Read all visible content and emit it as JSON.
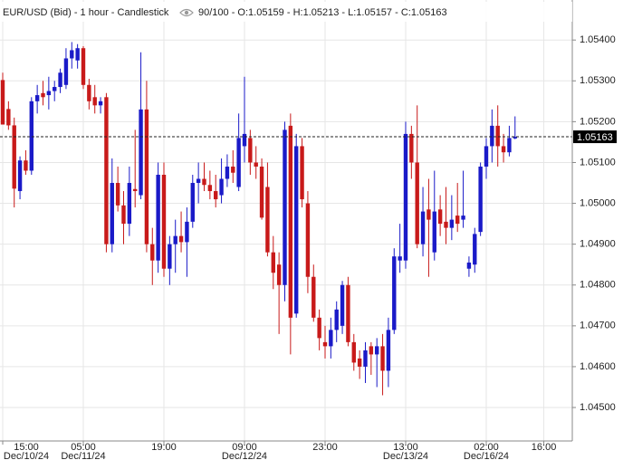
{
  "chart_data": {
    "type": "candlestick",
    "title": "EUR/USD (Bid) - 1 hour - Candlestick",
    "info": "90/100 - O:1.05159 - H:1.05213 - L:1.05157 - C:1.05163",
    "categories": [
      "15:00",
      null,
      null,
      null,
      null,
      null,
      null,
      null,
      null,
      null,
      null,
      null,
      null,
      null,
      "05:00",
      null,
      null,
      null,
      null,
      null,
      null,
      null,
      null,
      null,
      null,
      null,
      null,
      null,
      "19:00",
      null,
      null,
      null,
      null,
      null,
      null,
      null,
      null,
      null,
      null,
      null,
      null,
      null,
      "09:00",
      null,
      null,
      null,
      null,
      null,
      null,
      null,
      null,
      null,
      null,
      null,
      null,
      null,
      "23:00",
      null,
      null,
      null,
      null,
      null,
      null,
      null,
      null,
      null,
      null,
      null,
      null,
      null,
      "13:00",
      null,
      null,
      null,
      null,
      null,
      null,
      null,
      null,
      null,
      null,
      null,
      null,
      null,
      "02:00",
      null,
      null,
      null,
      null,
      null,
      null,
      null,
      null,
      null,
      "16:00"
    ],
    "dates": [
      "Dec/10/24",
      null,
      null,
      null,
      null,
      null,
      null,
      null,
      null,
      null,
      null,
      null,
      null,
      null,
      "Dec/11/24",
      null,
      null,
      null,
      null,
      null,
      null,
      null,
      null,
      null,
      null,
      null,
      null,
      null,
      null,
      null,
      null,
      null,
      null,
      null,
      null,
      null,
      null,
      null,
      null,
      null,
      null,
      null,
      "Dec/12/24",
      null,
      null,
      null,
      null,
      null,
      null,
      null,
      null,
      null,
      null,
      null,
      null,
      null,
      null,
      null,
      null,
      null,
      null,
      null,
      null,
      null,
      null,
      null,
      null,
      null,
      null,
      null,
      "Dec/13/24",
      null,
      null,
      null,
      null,
      null,
      null,
      null,
      null,
      null,
      null,
      null,
      null,
      null,
      "Dec/16/24",
      null,
      null,
      null,
      null,
      null,
      null,
      null,
      null,
      null,
      null
    ],
    "open": [
      1.05302,
      1.05231,
      1.05191,
      1.0503,
      1.05105,
      1.0508,
      1.0525,
      1.0527,
      1.05265,
      1.05275,
      1.05285,
      1.0529,
      1.05355,
      1.0535,
      1.0538,
      1.0529,
      1.0526,
      1.0524,
      1.0526,
      1.049,
      1.0505,
      1.04995,
      1.0495,
      1.05035,
      1.0502,
      1.0523,
      1.049,
      1.0486,
      1.0507,
      1.0484,
      1.049,
      1.0492,
      1.04905,
      1.04955,
      1.0505,
      1.0506,
      1.05045,
      1.0503,
      1.0502,
      1.0506,
      1.0509,
      1.0504,
      1.0514,
      1.0516,
      1.051,
      1.0509,
      1.0504,
      1.0488,
      1.0485,
      1.048,
      1.0519,
      1.0473,
      1.0514,
      1.05,
      1.0482,
      1.0472,
      1.0466,
      1.0465,
      1.0469,
      1.047,
      1.048,
      1.0466,
      1.0462,
      1.046,
      1.0465,
      1.0463,
      1.0465,
      1.0459,
      1.0469,
      1.0486,
      1.0486,
      1.0517,
      1.051,
      1.049,
      1.04985,
      1.0488,
      1.04985,
      1.04955,
      1.0494,
      1.0497,
      1.0496,
      1.0484,
      1.0485,
      1.0493,
      1.0509,
      1.0514,
      1.0519,
      1.0514,
      1.05125,
      1.05159,
      null,
      null,
      null,
      null,
      null
    ],
    "high": [
      1.0532,
      1.0525,
      1.0521,
      1.05115,
      1.0513,
      1.0526,
      1.0529,
      1.053,
      1.0531,
      1.053,
      1.0533,
      1.0538,
      1.05395,
      1.0539,
      1.05385,
      1.05305,
      1.0529,
      1.0526,
      1.0527,
      1.0511,
      1.0509,
      1.0503,
      1.0509,
      1.0518,
      1.0537,
      1.053,
      1.0494,
      1.051,
      1.051,
      1.0492,
      1.0496,
      1.0498,
      1.0499,
      1.0507,
      1.051,
      1.051,
      1.0508,
      1.0507,
      1.0511,
      1.0512,
      1.0513,
      1.0522,
      1.0531,
      1.0518,
      1.0514,
      1.0511,
      1.051,
      1.0492,
      1.0488,
      1.052,
      1.0522,
      1.0517,
      1.0516,
      1.0503,
      1.0485,
      1.0474,
      1.047,
      1.0472,
      1.0476,
      1.0481,
      1.0482,
      1.0468,
      1.0464,
      1.0466,
      1.0466,
      1.0467,
      1.0468,
      1.0472,
      1.0489,
      1.0495,
      1.052,
      1.0519,
      1.0524,
      1.0504,
      1.0506,
      1.0508,
      1.0502,
      1.0504,
      1.0502,
      1.0505,
      1.0508,
      1.0487,
      1.0494,
      1.051,
      1.0516,
      1.0523,
      1.0524,
      1.0517,
      1.0519,
      1.05213,
      null,
      null,
      null,
      null,
      null
    ],
    "low": [
      1.05193,
      1.0518,
      1.0499,
      1.0501,
      1.0507,
      1.0507,
      1.0522,
      1.0524,
      1.0523,
      1.0525,
      1.0527,
      1.0528,
      1.0533,
      1.0533,
      1.0528,
      1.0523,
      1.0522,
      1.0522,
      1.0488,
      1.0488,
      1.0498,
      1.049,
      1.0492,
      1.0499,
      1.0501,
      1.0488,
      1.048,
      1.0483,
      1.0482,
      1.048,
      1.0483,
      1.0488,
      1.0482,
      1.0494,
      1.05,
      1.0503,
      1.0501,
      1.0499,
      1.05,
      1.0504,
      1.0505,
      1.0503,
      1.051,
      1.0507,
      1.0506,
      1.0496,
      1.0487,
      1.0479,
      1.0468,
      1.0476,
      1.0463,
      1.0472,
      1.0499,
      1.0478,
      1.0471,
      1.0464,
      1.0462,
      1.0462,
      1.0466,
      1.0468,
      1.0465,
      1.0459,
      1.0457,
      1.0456,
      1.0458,
      1.0455,
      1.0453,
      1.0455,
      1.0468,
      1.0483,
      1.0484,
      1.0506,
      1.0489,
      1.0487,
      1.0482,
      1.0486,
      1.0492,
      1.049,
      1.0491,
      1.0493,
      1.0494,
      1.0482,
      1.0483,
      1.0492,
      1.0506,
      1.051,
      1.0509,
      1.051,
      1.05115,
      1.05157,
      null,
      null,
      null,
      null,
      null
    ],
    "close": [
      1.05193,
      1.05191,
      1.05036,
      1.05105,
      1.0508,
      1.0525,
      1.05265,
      1.0526,
      1.05275,
      1.05285,
      1.0532,
      1.05355,
      1.05375,
      1.0538,
      1.0529,
      1.0525,
      1.0524,
      1.0525,
      1.049,
      1.0505,
      1.04995,
      1.0495,
      1.0505,
      1.0503,
      1.0523,
      1.049,
      1.0486,
      1.0507,
      1.0484,
      1.049,
      1.0492,
      1.04905,
      1.04955,
      1.0505,
      1.0506,
      1.05045,
      1.0503,
      1.0501,
      1.0506,
      1.0509,
      1.05075,
      1.0516,
      1.0517,
      1.051,
      1.0509,
      1.04965,
      1.0488,
      1.0483,
      1.048,
      1.0518,
      1.0472,
      1.0514,
      1.0501,
      1.0482,
      1.0472,
      1.0467,
      1.0465,
      1.0469,
      1.0474,
      1.048,
      1.0466,
      1.0461,
      1.046,
      1.0464,
      1.0463,
      1.0465,
      1.0459,
      1.0469,
      1.0487,
      1.0487,
      1.0517,
      1.051,
      1.049,
      1.0498,
      1.0496,
      1.0498,
      1.0495,
      1.0494,
      1.0496,
      1.0495,
      1.0497,
      1.04855,
      1.04925,
      1.0509,
      1.0514,
      1.0519,
      1.0514,
      1.05125,
      1.0516,
      1.05163,
      null,
      null,
      null,
      null,
      null
    ],
    "up_color": "#1a1ac8",
    "down_color": "#c81a1a",
    "last_price": 1.05163,
    "ylim": [
      1.04418,
      1.05498
    ],
    "yticks": [
      {
        "value": 1.045,
        "label": "1.04500"
      },
      {
        "value": 1.046,
        "label": "1.04600"
      },
      {
        "value": 1.047,
        "label": "1.04700"
      },
      {
        "value": 1.048,
        "label": "1.04800"
      },
      {
        "value": 1.049,
        "label": "1.04900"
      },
      {
        "value": 1.05,
        "label": "1.05000"
      },
      {
        "value": 1.051,
        "label": "1.05100"
      },
      {
        "value": 1.052,
        "label": "1.05200"
      },
      {
        "value": 1.053,
        "label": "1.05300"
      },
      {
        "value": 1.054,
        "label": "1.05400"
      }
    ],
    "grid": true
  }
}
